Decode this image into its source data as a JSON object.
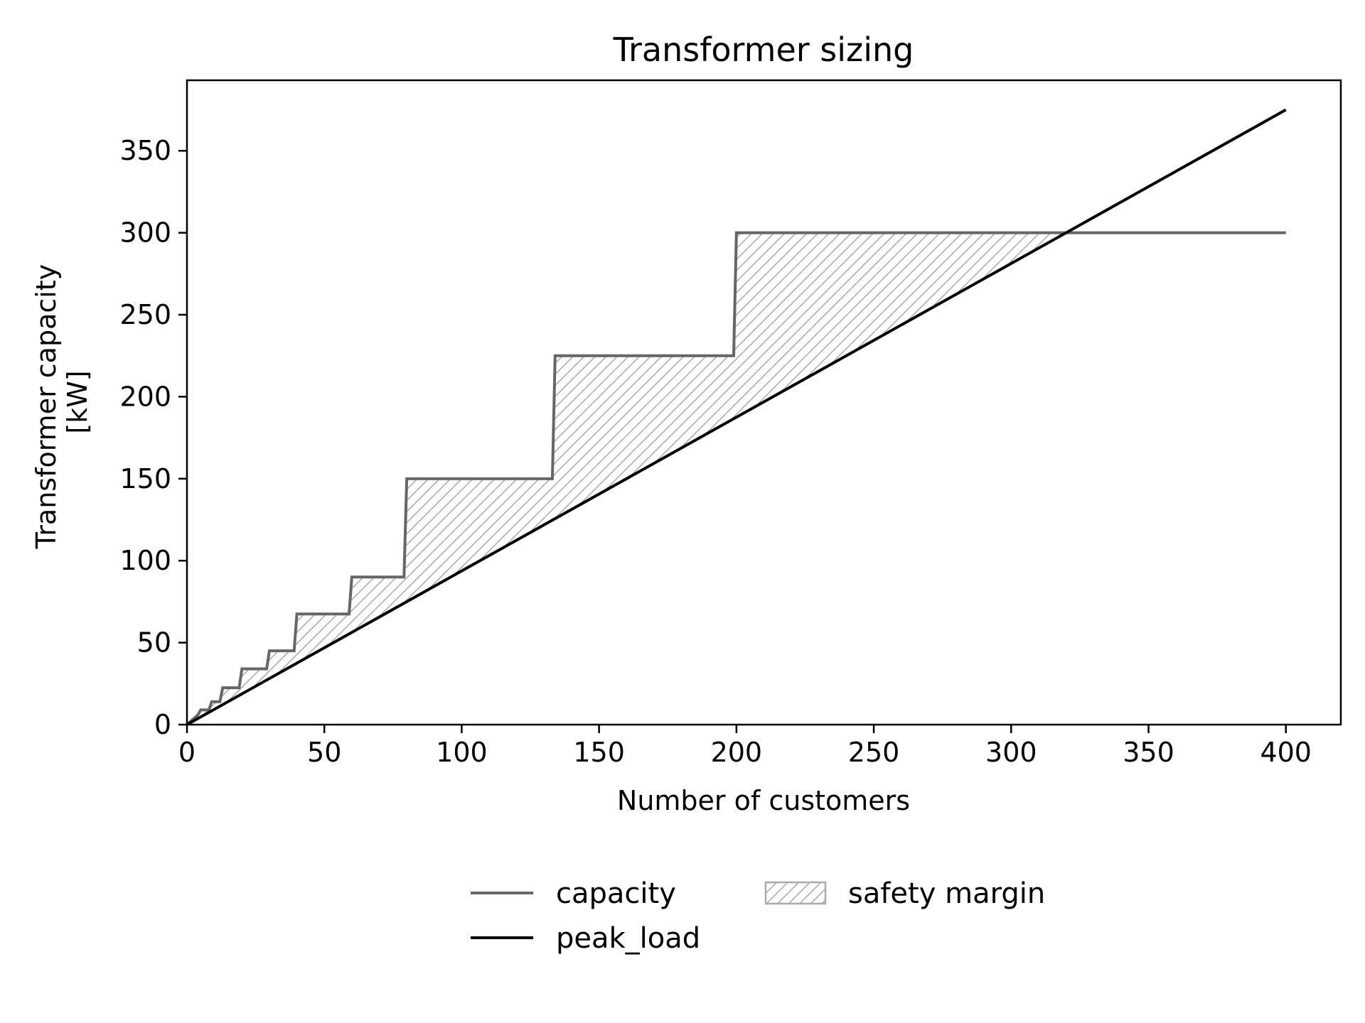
{
  "chart_data": {
    "type": "line",
    "title": "Transformer sizing",
    "xlabel": "Number of customers",
    "ylabel_lines": [
      "Transformer capacity",
      "[kW]"
    ],
    "xlim": [
      0,
      420
    ],
    "ylim": [
      0,
      393
    ],
    "xticks": [
      0,
      50,
      100,
      150,
      200,
      250,
      300,
      350,
      400
    ],
    "yticks": [
      0,
      50,
      100,
      150,
      200,
      250,
      300,
      350
    ],
    "grid": false,
    "legend_position": "bottom-center",
    "colors": {
      "capacity": "#666666",
      "peak_load": "#000000",
      "safety_margin": "#aaaaaa"
    },
    "series": [
      {
        "name": "capacity",
        "type": "step",
        "x": [
          0,
          4,
          5,
          8,
          9,
          12,
          13,
          19,
          20,
          29,
          30,
          39,
          40,
          59,
          60,
          79,
          80,
          133,
          134,
          199,
          200,
          400
        ],
        "y": [
          0,
          6,
          9,
          9,
          14,
          14,
          22.5,
          22.5,
          34,
          34,
          45,
          45,
          67.5,
          67.5,
          90,
          90,
          150,
          150,
          225,
          225,
          300,
          300
        ]
      },
      {
        "name": "peak_load",
        "type": "line",
        "x": [
          0,
          400
        ],
        "y": [
          0,
          375
        ]
      }
    ],
    "legend": [
      {
        "label": "capacity",
        "kind": "line",
        "color_key": "capacity"
      },
      {
        "label": "peak_load",
        "kind": "line",
        "color_key": "peak_load"
      },
      {
        "label": "safety margin",
        "kind": "hatch",
        "color_key": "safety_margin"
      }
    ]
  }
}
